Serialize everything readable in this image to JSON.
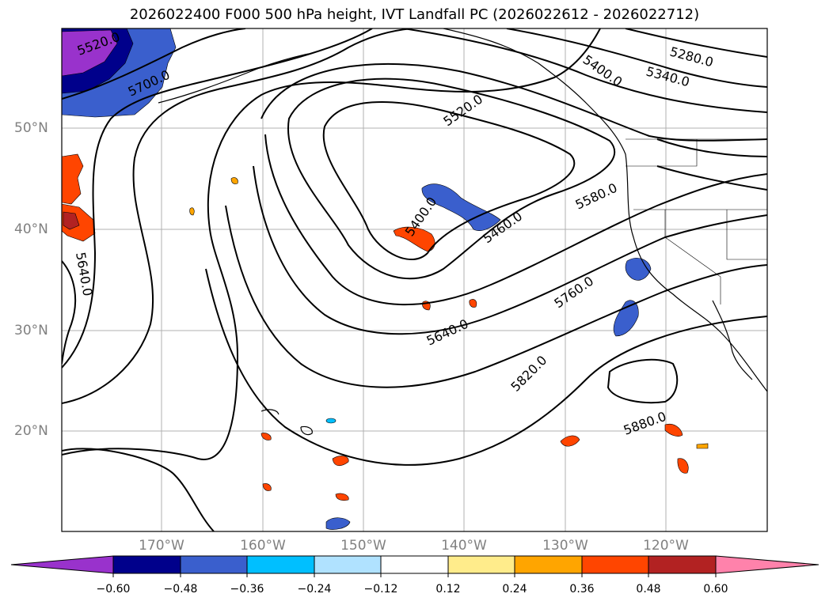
{
  "title": "2026022400 F000 500 hPa height, IVT Landfall PC (2026022612 - 2026022712)",
  "lat_labels": [
    "50°N",
    "40°N",
    "30°N",
    "20°N"
  ],
  "lon_labels": [
    "170°W",
    "160°W",
    "150°W",
    "140°W",
    "130°W",
    "120°W"
  ],
  "contour_labels": [
    "5520.0",
    "5700.0",
    "5640.0",
    "5520.0",
    "5400.0",
    "5460.0",
    "5580.0",
    "5760.0",
    "5640.0",
    "5820.0",
    "5880.0",
    "5400.0",
    "5340.0",
    "5280.0"
  ],
  "colorbar": {
    "ticks": [
      "−0.60",
      "−0.48",
      "−0.36",
      "−0.24",
      "−0.12",
      "0.12",
      "0.24",
      "0.36",
      "0.48",
      "0.60"
    ],
    "colors": [
      "#9932cc",
      "#00008b",
      "#3a5fcd",
      "#00bfff",
      "#b0e2ff",
      "#ffffff",
      "#ffec8b",
      "#ffa500",
      "#ff4500",
      "#b22222",
      "#ff82ab"
    ]
  }
}
